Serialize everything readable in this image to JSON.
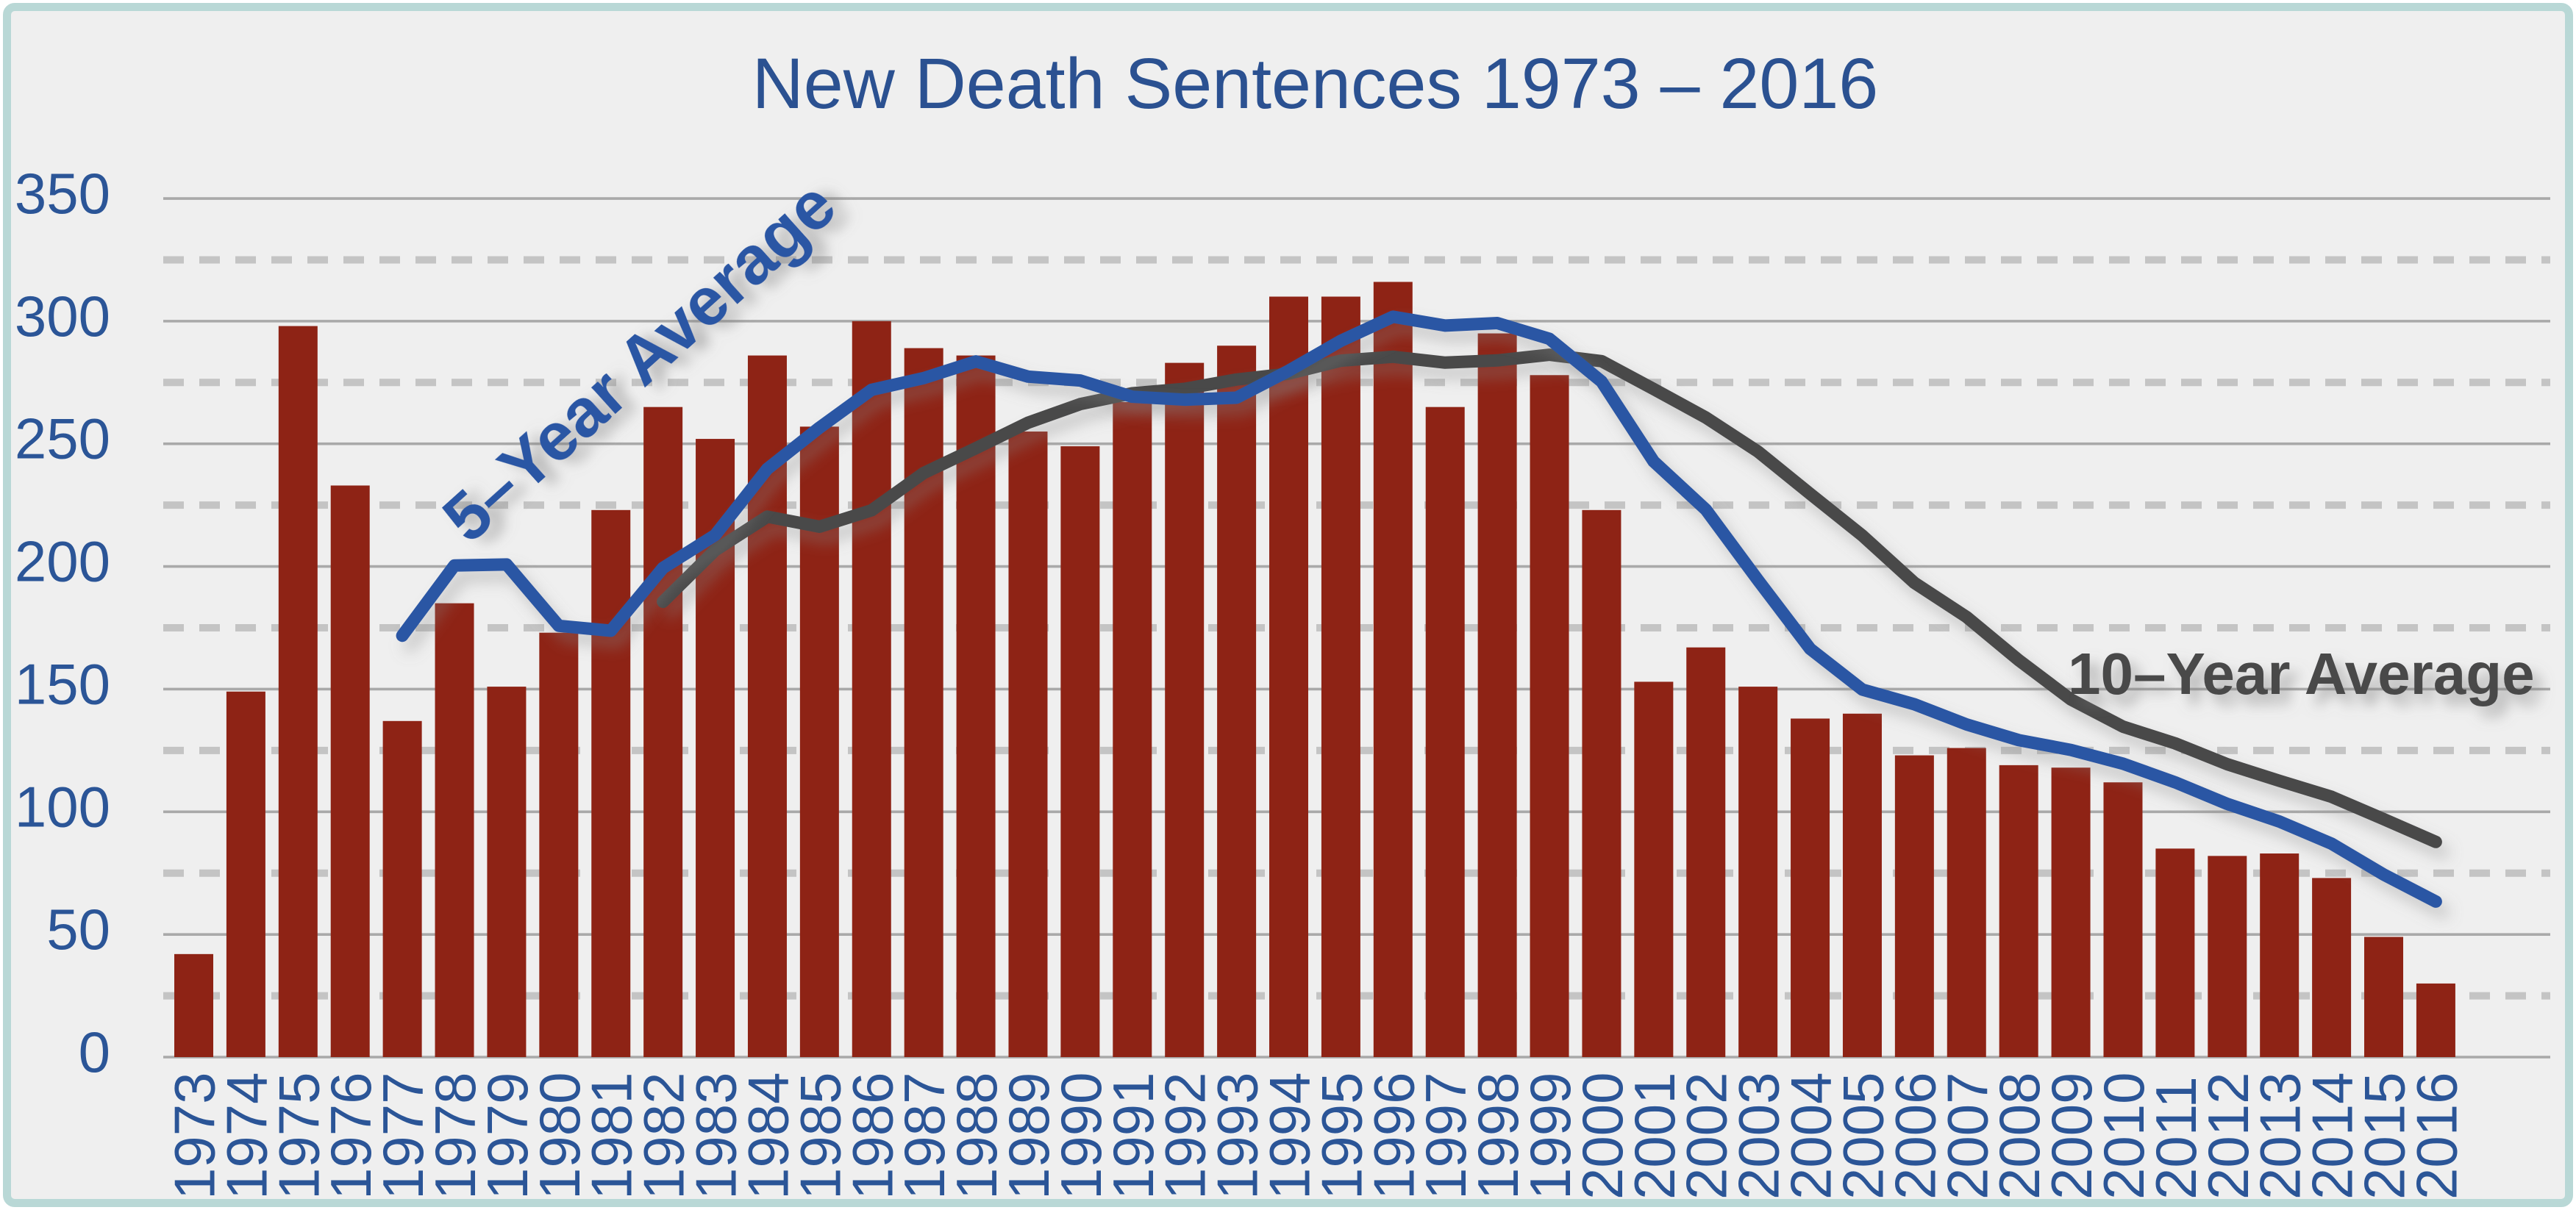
{
  "colors": {
    "background": "#EFEFEF",
    "frame_border": "#B9D8D6",
    "title_text": "#2B5191",
    "axis_text": "#2B5597",
    "bar_fill": "#8E2315",
    "five_year_line": "#2B57A4",
    "ten_year_line": "#48484A",
    "grid_solid": "#A9A9A9",
    "grid_dashed": "#C4C4C4"
  },
  "chart_data": {
    "type": "bar",
    "title": "New Death Sentences 1973 – 2016",
    "xlabel": "",
    "ylabel": "",
    "ylim": [
      0,
      350
    ],
    "yticks": [
      0,
      50,
      100,
      150,
      200,
      250,
      300,
      350
    ],
    "grid": "solid gray lines at multiples of 50, dashed gray lines at multiples of 25",
    "legend_position": "labels drawn on chart",
    "categories": [
      1973,
      1974,
      1975,
      1976,
      1977,
      1978,
      1979,
      1980,
      1981,
      1982,
      1983,
      1984,
      1985,
      1986,
      1987,
      1988,
      1989,
      1990,
      1991,
      1992,
      1993,
      1994,
      1995,
      1996,
      1997,
      1998,
      1999,
      2000,
      2001,
      2002,
      2003,
      2004,
      2005,
      2006,
      2007,
      2008,
      2009,
      2010,
      2011,
      2012,
      2013,
      2014,
      2015,
      2016
    ],
    "values": [
      42,
      149,
      298,
      233,
      137,
      185,
      151,
      173,
      223,
      265,
      252,
      286,
      257,
      300,
      289,
      286,
      255,
      249,
      267,
      283,
      290,
      310,
      310,
      316,
      265,
      295,
      278,
      223,
      153,
      167,
      151,
      138,
      140,
      123,
      126,
      119,
      118,
      112,
      85,
      82,
      83,
      73,
      49,
      30
    ],
    "series": [
      {
        "name": "5–Year Average",
        "type": "line",
        "window": 5,
        "start_category": 1977,
        "values": [
          171.8,
          200.4,
          200.8,
          175.8,
          173.8,
          199.4,
          212.8,
          239.8,
          256.6,
          272.0,
          276.8,
          283.6,
          277.4,
          275.8,
          269.2,
          268.0,
          268.8,
          279.8,
          292.0,
          301.8,
          298.2,
          299.2,
          292.8,
          275.4,
          242.8,
          223.2,
          194.4,
          166.4,
          149.8,
          143.8,
          135.6,
          129.2,
          125.2,
          119.6,
          112.0,
          103.2,
          96.0,
          87.0,
          74.4,
          63.4
        ],
        "label_text": "5–Year Average",
        "label_rotation_deg": -42
      },
      {
        "name": "10–Year Average",
        "type": "line",
        "window": 10,
        "start_category": 1982,
        "values": [
          185.6,
          206.6,
          220.3,
          216.2,
          222.9,
          238.1,
          248.2,
          258.6,
          266.2,
          270.6,
          272.4,
          276.2,
          278.6,
          283.9,
          285.5,
          283.1,
          284.0,
          286.3,
          283.7,
          272.3,
          260.7,
          246.8,
          229.6,
          212.6,
          193.3,
          179.4,
          161.8,
          145.8,
          134.7,
          127.9,
          119.4,
          112.6,
          106.1,
          97.0,
          87.7
        ],
        "label_text": "10–Year Average",
        "label_rotation_deg": 0
      }
    ]
  }
}
